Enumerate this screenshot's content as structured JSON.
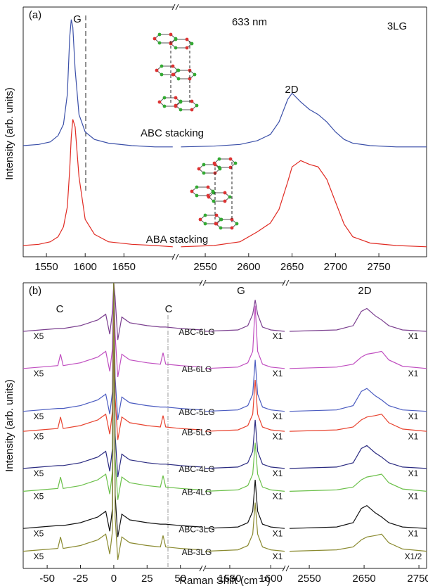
{
  "chart_data": [
    {
      "type": "line",
      "panel_label": "(a)",
      "ylabel": "Intensity (arb. units)",
      "annotations": [
        "G",
        "633 nm",
        "3LG",
        "2D"
      ],
      "ylim": [
        0,
        100
      ],
      "segments": [
        {
          "xlim": [
            1520,
            1715
          ],
          "xticks": [
            1550,
            1600,
            1650
          ],
          "x": [
            1520,
            1540,
            1555,
            1565,
            1572,
            1577,
            1580,
            1582,
            1584,
            1587,
            1592,
            1600,
            1612,
            1630,
            1660,
            1690,
            1713
          ]
        },
        {
          "xlim": [
            2520,
            2805
          ],
          "xticks": [
            2550,
            2600,
            2650,
            2700,
            2750
          ],
          "x": [
            2522,
            2560,
            2590,
            2610,
            2625,
            2635,
            2645,
            2650,
            2660,
            2670,
            2680,
            2690,
            2700,
            2710,
            2720,
            2740,
            2770,
            2805
          ]
        }
      ],
      "series": [
        {
          "name": "ABC stacking",
          "color": "#3a4fa8",
          "segments": [
            {
              "values": [
                44.5,
                45,
                46,
                48.5,
                53,
                65,
                88,
                95,
                92,
                75,
                57,
                50,
                47,
                45.5,
                44.5,
                44,
                44
              ]
            },
            {
              "values": [
                44,
                44.3,
                45,
                46.5,
                49,
                54,
                63,
                65.5,
                62,
                59,
                57,
                54,
                50,
                47,
                45.5,
                44.5,
                44,
                44
              ]
            }
          ]
        },
        {
          "name": "ABA stacking",
          "color": "#e02a22",
          "segments": [
            {
              "values": [
                4.5,
                5,
                6,
                8,
                12,
                20,
                35,
                48,
                55,
                52,
                32,
                15,
                9,
                6,
                5,
                4.5,
                4
              ]
            },
            {
              "values": [
                4,
                4.5,
                6,
                10,
                13.5,
                19,
                30,
                36,
                38.5,
                37,
                36,
                31,
                22,
                13,
                8,
                5.5,
                4.5,
                4
              ]
            }
          ]
        }
      ]
    },
    {
      "type": "line",
      "panel_label": "(b)",
      "ylabel": "Intensity (arb. units)",
      "xlabel": "Raman Shift (cm⁻¹)",
      "annotations": [
        "C",
        "C",
        "G",
        "2D"
      ],
      "ylim": [
        0,
        100
      ],
      "segments": [
        {
          "xlim": [
            -68,
            66
          ],
          "xticks": [
            -50,
            -25,
            0,
            25,
            50
          ],
          "x": [
            -68,
            -55,
            -42,
            -40,
            -38,
            -25,
            -12,
            -6,
            -3,
            -1,
            0,
            1,
            3,
            6,
            12,
            25,
            35,
            37,
            39,
            50,
            66
          ]
        },
        {
          "xlim": [
            1520,
            1617
          ],
          "xticks": [
            1550,
            1600
          ],
          "x": [
            1520,
            1560,
            1572,
            1578,
            1581,
            1584,
            1590,
            1600,
            1617
          ]
        },
        {
          "xlim": [
            2514,
            2764
          ],
          "xticks": [
            2550,
            2650,
            2750
          ],
          "x": [
            2514,
            2600,
            2630,
            2645,
            2655,
            2670,
            2682,
            2695,
            2720,
            2764
          ]
        }
      ],
      "series": [
        {
          "name": "ABC-6LG",
          "color": "#7b3f8f",
          "multipliers": [
            "X5",
            "X1",
            "X1"
          ],
          "segments": [
            {
              "values": [
                83,
                83.5,
                84,
                84,
                84,
                85,
                87,
                89,
                82,
                90,
                100,
                95,
                80,
                88,
                86,
                85,
                84.5,
                84.5,
                84.5,
                84,
                83.5
              ]
            },
            {
              "values": [
                83,
                83.5,
                85,
                89,
                94,
                89,
                84.5,
                83.5,
                83
              ]
            },
            {
              "values": [
                83,
                83.5,
                85,
                90,
                91,
                88.5,
                87,
                85,
                83.5,
                83
              ]
            }
          ]
        },
        {
          "name": "AB-6LG",
          "color": "#c04ec0",
          "multipliers": [
            "X5",
            "X1",
            "X1"
          ],
          "segments": [
            {
              "values": [
                70,
                70.5,
                71,
                75,
                71,
                72,
                74,
                76,
                69,
                77,
                100,
                82,
                67,
                75,
                73,
                72,
                71.5,
                75.5,
                71.5,
                71,
                70.5
              ]
            },
            {
              "values": [
                70,
                70.5,
                72,
                76,
                92,
                76,
                71.5,
                70.5,
                70
              ]
            },
            {
              "values": [
                70,
                70.5,
                71.5,
                74,
                75,
                75.5,
                76,
                73,
                70.8,
                70
              ]
            }
          ]
        },
        {
          "name": "ABC-5LG",
          "color": "#4a5bc0",
          "multipliers": [
            "X5",
            "X1",
            "X1"
          ],
          "segments": [
            {
              "values": [
                55,
                55.5,
                56,
                56,
                56,
                57,
                59,
                61,
                54,
                62,
                100,
                67,
                52,
                60,
                58,
                57,
                56.5,
                56.5,
                56.5,
                56,
                55.5
              ]
            },
            {
              "values": [
                55,
                55.5,
                57,
                61,
                73,
                61,
                56.5,
                55.5,
                55
              ]
            },
            {
              "values": [
                55,
                55.5,
                57,
                62,
                63,
                60.5,
                59,
                57,
                55.5,
                55
              ]
            }
          ]
        },
        {
          "name": "AB-5LG",
          "color": "#e8432f",
          "multipliers": [
            "X5",
            "X1",
            "X1"
          ],
          "segments": [
            {
              "values": [
                48,
                48.5,
                49,
                53,
                49,
                50,
                52,
                54,
                47,
                55,
                100,
                60,
                45,
                53,
                51,
                50,
                49.5,
                53.5,
                49.5,
                49,
                48.5
              ]
            },
            {
              "values": [
                48,
                48.5,
                50,
                54,
                66,
                54,
                49.5,
                48.5,
                48
              ]
            },
            {
              "values": [
                48,
                48.5,
                49.5,
                52,
                53,
                53.5,
                54,
                51,
                48.8,
                48
              ]
            }
          ]
        },
        {
          "name": "ABC-4LG",
          "color": "#2a2a80",
          "multipliers": [
            "X5",
            "X1",
            "X1"
          ],
          "segments": [
            {
              "values": [
                35,
                35.5,
                36,
                36,
                36,
                37,
                39,
                41,
                34,
                42,
                100,
                47,
                32,
                40,
                38,
                37,
                36.5,
                36.5,
                36.5,
                36,
                35.5
              ]
            },
            {
              "values": [
                35,
                35.5,
                37,
                41,
                52,
                41,
                36.5,
                35.5,
                35
              ]
            },
            {
              "values": [
                35,
                35.5,
                37,
                42,
                43,
                40.5,
                39,
                37,
                35.5,
                35
              ]
            }
          ]
        },
        {
          "name": "AB-4LG",
          "color": "#6cc04a",
          "multipliers": [
            "X5",
            "X1",
            "X1"
          ],
          "segments": [
            {
              "values": [
                27,
                27.5,
                28,
                32,
                28,
                29,
                31,
                33,
                26,
                34,
                100,
                39,
                24,
                32,
                30,
                29,
                28.5,
                32.5,
                28.5,
                28,
                27.5
              ]
            },
            {
              "values": [
                27,
                27.5,
                29,
                33,
                44,
                33,
                28.5,
                27.5,
                27
              ]
            },
            {
              "values": [
                27,
                27.5,
                28.5,
                31,
                32,
                32.5,
                33,
                30,
                27.8,
                27
              ]
            }
          ]
        },
        {
          "name": "ABC-3LG",
          "color": "#111111",
          "multipliers": [
            "X5",
            "X1",
            "X1"
          ],
          "segments": [
            {
              "values": [
                14,
                14.5,
                15,
                15,
                15,
                16,
                18,
                20,
                13,
                21,
                100,
                26,
                11,
                19,
                17,
                16,
                15.5,
                15.5,
                15.5,
                15,
                14.5
              ]
            },
            {
              "values": [
                14,
                14.5,
                16,
                20,
                31,
                20,
                15.5,
                14.5,
                14
              ]
            },
            {
              "values": [
                14,
                14.5,
                16,
                21,
                22,
                19.5,
                18,
                16,
                14.5,
                14
              ]
            }
          ]
        },
        {
          "name": "AB-3LG",
          "color": "#8a8a30",
          "multipliers": [
            "X5",
            "X1",
            "X1/2"
          ],
          "segments": [
            {
              "values": [
                6,
                6.5,
                7,
                11,
                7,
                8,
                10,
                12,
                5,
                13,
                100,
                18,
                3,
                11,
                9,
                8,
                7.5,
                11.5,
                7.5,
                7,
                6.5
              ]
            },
            {
              "values": [
                6,
                6.5,
                8,
                12,
                23,
                12,
                7.5,
                6.5,
                6
              ]
            },
            {
              "values": [
                6,
                6.5,
                7.5,
                10,
                11,
                11.5,
                12,
                9,
                6.8,
                6
              ]
            }
          ]
        }
      ]
    }
  ]
}
